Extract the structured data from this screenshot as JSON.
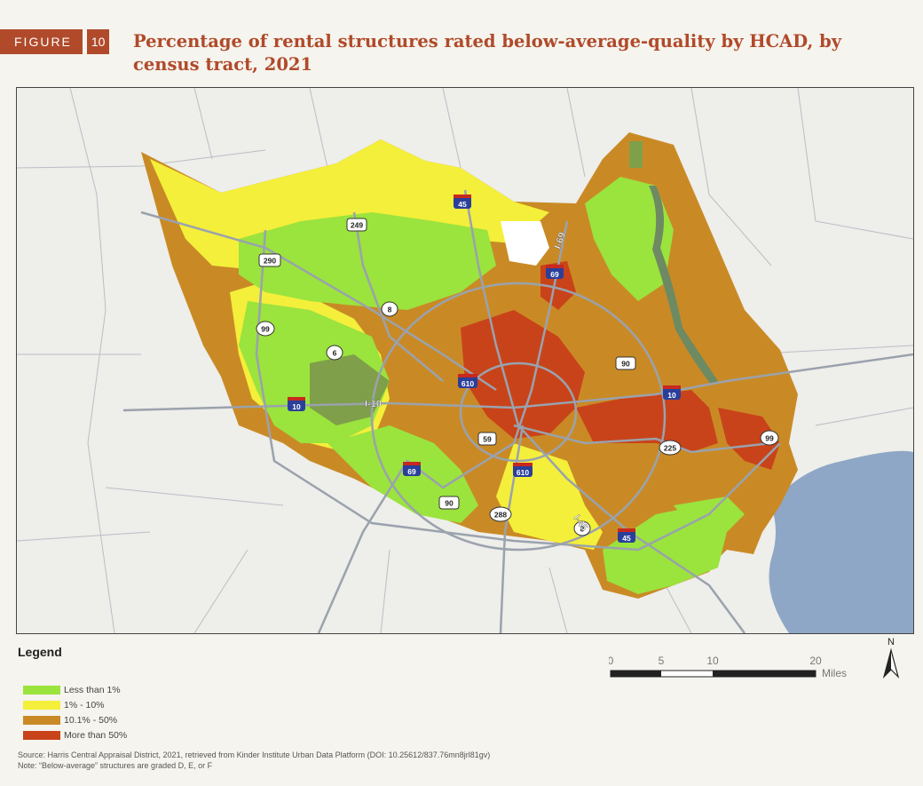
{
  "figure": {
    "word": "FIGURE",
    "number": "10"
  },
  "title": "Percentage of rental structures rated below-average-quality by HCAD, by census tract, 2021",
  "map": {
    "region_colors": {
      "lt1": "#9be33d",
      "r1_10": "#f4ef3a",
      "r10_50": "#c98a26",
      "gt50": "#c9431a",
      "water": "#8fa7c6",
      "background": "#eeeeea",
      "roads": "#9aa2ad",
      "park": "#7f9f4a"
    },
    "highway_labels": {
      "i45_north": "45",
      "i45_south": "45",
      "i69_north": "69",
      "i69_southwest": "69",
      "i10_west": "10",
      "i10_east": "10",
      "i610_north": "610",
      "i610_south": "610",
      "us290": "290",
      "us59": "59",
      "us90_west": "90",
      "us90_east": "90",
      "sh249": "249",
      "sh99_west": "99",
      "sh99_east": "99",
      "sh8_north": "8",
      "sh8_south": "8",
      "sh6": "6",
      "sh288": "288",
      "sh225": "225"
    },
    "road_text": {
      "i10": "I-10",
      "i69": "I-69",
      "i45": "I-45"
    }
  },
  "legend": {
    "title": "Legend",
    "items": [
      {
        "label": "Less than 1%",
        "color": "#9be33d"
      },
      {
        "label": "1% - 10%",
        "color": "#f4ef3a"
      },
      {
        "label": "10.1% - 50%",
        "color": "#c98a26"
      },
      {
        "label": "More than 50%",
        "color": "#c9431a"
      }
    ]
  },
  "scale": {
    "ticks": [
      "0",
      "5",
      "10",
      "20"
    ],
    "unit": "Miles"
  },
  "north_label": "N",
  "source": "Source: Harris Central Appraisal District, 2021, retrieved from Kinder Institute Urban Data Platform (DOI: 10.25612/837.76mn8jrl81gv)",
  "note": "Note: “Below-average” structures are graded D, E, or F"
}
